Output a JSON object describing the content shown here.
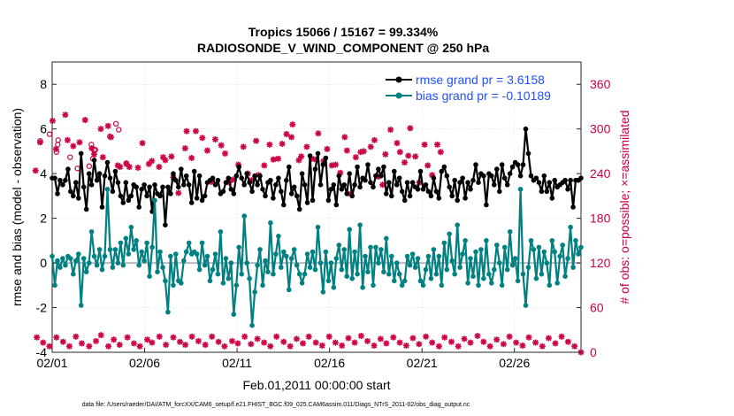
{
  "chart_data": {
    "type": "line",
    "title_line1": "Tropics 15066 / 15167 = 99.334%",
    "title_line2": "RADIOSONDE_V_WIND_COMPONENT @ 250 hPa",
    "xlabel": "Feb.01,2011 00:00:00 start",
    "ylabel": "rmse and bias (model - observation)",
    "ylabel_right": "# of obs: o=possible; ×=assimilated",
    "x_tick_labels": [
      "02/01",
      "02/06",
      "02/11",
      "02/16",
      "02/21",
      "02/26"
    ],
    "x_tick_days": [
      1,
      6,
      11,
      16,
      21,
      26
    ],
    "xlim": [
      1,
      29.6
    ],
    "ylim": [
      -4,
      9
    ],
    "y_ticks": [
      "-4",
      "-2",
      "0",
      "2",
      "4",
      "6",
      "8"
    ],
    "ylim_right": [
      0,
      390
    ],
    "y_ticks_right": [
      "0",
      "60",
      "120",
      "180",
      "240",
      "300",
      "360"
    ],
    "footnote": "data file: /Users/raeder/DAI/ATM_forcXX/CAM6_setup/f.e21.FHIST_BGC.f09_025.CAM6assim.011/Diags_NTrS_2011-02/obs_diag_output.nc",
    "series": [
      {
        "name": "rmse grand pr = 3.6158",
        "color": "#000000",
        "values": [
          3.8,
          3.8,
          3.1,
          3.7,
          3.5,
          3.7,
          4.2,
          3.2,
          3.0,
          3.6,
          2.9,
          4.9,
          3.4,
          2.4,
          4.0,
          3.5,
          4.6,
          3.7,
          4.0,
          2.5,
          3.9,
          4.5,
          3.8,
          3.2,
          4.1,
          3.6,
          3.0,
          2.7,
          3.6,
          2.8,
          3.0,
          3.5,
          3.4,
          2.5,
          3.3,
          3.5,
          3.0,
          3.4,
          2.3,
          3.5,
          3.1,
          3.0,
          3.4,
          1.7,
          3.4,
          3.1,
          4.0,
          3.7,
          3.4,
          4.2,
          3.5,
          3.9,
          3.5,
          2.7,
          4.1,
          2.9,
          3.9,
          2.8,
          3.0,
          3.6,
          3.7,
          3.8,
          3.5,
          3.7,
          3.1,
          3.2,
          3.6,
          3.8,
          3.3,
          3.1,
          3.9,
          4.3,
          3.8,
          3.5,
          4.0,
          3.6,
          3.2,
          3.9,
          3.5,
          3.9,
          3.3,
          3.0,
          3.6,
          3.7,
          2.9,
          3.5,
          3.8,
          3.2,
          2.6,
          3.7,
          4.3,
          3.1,
          3.4,
          3.0,
          2.4,
          4.0,
          3.5,
          2.7,
          4.8,
          2.8,
          4.2,
          4.9,
          3.5,
          4.4,
          4.7,
          2.8,
          3.3,
          3.5,
          2.6,
          3.9,
          3.3,
          3.5,
          3.1,
          4.0,
          3.0,
          3.5,
          4.3,
          3.4,
          3.8,
          3.7,
          4.4,
          3.6,
          3.4,
          3.9,
          4.2,
          3.9,
          4.3,
          3.1,
          3.6,
          3.0,
          4.1,
          3.5,
          3.8,
          3.2,
          2.8,
          3.6,
          3.0,
          3.6,
          3.4,
          3.3,
          4.1,
          3.3,
          3.5,
          3.2,
          3.0,
          3.8,
          3.2,
          2.9,
          4.1,
          4.3,
          3.9,
          3.4,
          3.0,
          3.7,
          2.8,
          3.6,
          3.8,
          2.9,
          3.6,
          3.3,
          3.7,
          4.4,
          3.6,
          4.0,
          3.9,
          2.6,
          4.0,
          3.9,
          3.5,
          4.2,
          3.2,
          4.4,
          3.8,
          3.5,
          4.0,
          4.3,
          4.5,
          4.4,
          3.9,
          4.4,
          6.0,
          4.9,
          3.9,
          3.7,
          3.8,
          3.6,
          3.2,
          3.9,
          3.2,
          3.6,
          2.9,
          3.7,
          3.4,
          3.5,
          3.6,
          3.7,
          3.3,
          3.7,
          2.5,
          3.7,
          3.7,
          3.8
        ]
      },
      {
        "name": "bias grand pr = -0.10189",
        "color": "#008080",
        "values": [
          0.3,
          -1.0,
          0.1,
          -0.2,
          0.2,
          -0.1,
          0.3,
          0.2,
          -0.5,
          0.1,
          0.4,
          -1.9,
          0.2,
          -0.4,
          0.0,
          1.4,
          0.3,
          -0.1,
          0.6,
          -0.3,
          0.3,
          3.3,
          0.6,
          -0.2,
          0.6,
          0.0,
          0.9,
          -0.1,
          1.1,
          0.4,
          1.6,
          0.6,
          1.0,
          -0.1,
          0.5,
          0.1,
          0.9,
          -0.6,
          0.7,
          2.8,
          -0.4,
          0.5,
          -0.2,
          -0.8,
          -2.2,
          0.3,
          -1.0,
          0.4,
          -0.8,
          -0.9,
          0.1,
          0.5,
          0.9,
          0.4,
          0.5,
          0.4,
          -0.3,
          0.9,
          -0.1,
          0.3,
          -0.8,
          -0.3,
          0.4,
          -0.5,
          1.4,
          -0.9,
          0.2,
          -0.7,
          0.0,
          -2.3,
          -1.0,
          0.7,
          -0.5,
          2.1,
          0.0,
          -0.7,
          -2.8,
          -1.3,
          -0.1,
          0.6,
          -1.0,
          0.1,
          -0.4,
          1.8,
          -0.5,
          0.4,
          1.2,
          -0.2,
          0.5,
          0.3,
          -1.2,
          0.2,
          0.6,
          -0.1,
          -0.5,
          -0.9,
          -0.5,
          0.4,
          -0.2,
          0.5,
          -0.3,
          1.6,
          0.0,
          -1.3,
          0.5,
          -0.8,
          0.0,
          -1.1,
          0.2,
          0.8,
          -0.3,
          0.6,
          -0.6,
          1.5,
          -0.7,
          0.5,
          -0.5,
          1.7,
          -1.1,
          0.3,
          -0.4,
          0.7,
          -1.0,
          0.7,
          0.0,
          0.6,
          -0.4,
          1.1,
          -0.5,
          0.3,
          -0.8,
          0.0,
          -0.5,
          -1.0,
          -0.8,
          0.3,
          -0.1,
          0.4,
          -0.2,
          0.2,
          -0.8,
          -1.0,
          -0.3,
          0.3,
          -0.7,
          0.6,
          -0.5,
          0.3,
          -1.0,
          0.9,
          -0.3,
          1.3,
          0.1,
          -0.5,
          1.7,
          -0.2,
          0.4,
          1.0,
          -0.9,
          0.2,
          -0.6,
          0.5,
          -1.0,
          0.6,
          -0.7,
          1.0,
          -0.5,
          -0.9,
          -0.3,
          0.8,
          0.0,
          -1.0,
          0.7,
          -0.3,
          1.4,
          -0.1,
          0.2,
          -0.8,
          3.3,
          -0.5,
          -1.9,
          -0.2,
          1.0,
          0.6,
          -0.7,
          0.7,
          -0.5,
          0.5,
          0.0,
          -1.0,
          1.0,
          0.5,
          -0.9,
          0.3,
          0.8,
          -0.6,
          0.2,
          1.6,
          -0.2,
          1.0,
          0.4,
          0.7
        ]
      }
    ],
    "obs_possible_marks": [
      [
        5,
        0.35,
        284
      ],
      [
        11,
        1.32,
        285
      ],
      [
        13,
        3.2,
        260
      ],
      [
        15,
        5.0,
        254
      ],
      [
        17,
        0.86,
        293
      ],
      [
        28,
        1.3,
        279
      ],
      [
        29,
        1.97,
        262
      ],
      [
        32,
        3.27,
        272
      ],
      [
        35,
        2.37,
        247
      ],
      [
        42,
        4.12,
        290
      ],
      [
        44,
        3.0,
        250
      ],
      [
        58,
        3.33,
        272
      ],
      [
        61,
        4.45,
        307
      ],
      [
        77,
        1.23,
        269
      ],
      [
        83,
        4.6,
        299
      ],
      [
        90,
        3.12,
        279
      ]
    ],
    "obs_assimilated_marks": [
      [
        1,
        0.1,
        244
      ],
      [
        2,
        0.35,
        282
      ],
      [
        3,
        1.02,
        311
      ],
      [
        4,
        1.21,
        273
      ],
      [
        5,
        1.71,
        319
      ],
      [
        6,
        1.83,
        285
      ],
      [
        7,
        2.14,
        277
      ],
      [
        8,
        2.48,
        282
      ],
      [
        9,
        2.78,
        312
      ],
      [
        10,
        3.14,
        274
      ],
      [
        11,
        3.27,
        266
      ],
      [
        12,
        3.63,
        300
      ],
      [
        13,
        3.74,
        262
      ],
      [
        14,
        4.02,
        304
      ],
      [
        15,
        4.18,
        289
      ],
      [
        16,
        4.55,
        251
      ],
      [
        17,
        4.67,
        249
      ],
      [
        18,
        5.02,
        253
      ],
      [
        19,
        5.17,
        249
      ],
      [
        20,
        5.64,
        248
      ],
      [
        21,
        5.88,
        281
      ],
      [
        22,
        6.23,
        253
      ],
      [
        23,
        6.39,
        257
      ],
      [
        24,
        6.78,
        249
      ],
      [
        25,
        7.0,
        262
      ],
      [
        26,
        7.12,
        258
      ],
      [
        27,
        7.45,
        263
      ],
      [
        28,
        7.55,
        235
      ],
      [
        29,
        7.83,
        214
      ],
      [
        30,
        8.19,
        274
      ],
      [
        31,
        8.27,
        297
      ],
      [
        32,
        8.54,
        261
      ],
      [
        33,
        8.77,
        297
      ],
      [
        34,
        9.12,
        288
      ],
      [
        35,
        9.39,
        271
      ],
      [
        36,
        9.6,
        229
      ],
      [
        37,
        9.82,
        286
      ],
      [
        38,
        10.14,
        278
      ],
      [
        39,
        10.35,
        267
      ],
      [
        40,
        10.57,
        228
      ],
      [
        41,
        10.78,
        232
      ],
      [
        42,
        11.07,
        252
      ],
      [
        43,
        11.34,
        276
      ],
      [
        44,
        11.58,
        240
      ],
      [
        45,
        11.8,
        231
      ],
      [
        46,
        12.03,
        284
      ],
      [
        47,
        12.16,
        238
      ],
      [
        48,
        12.47,
        251
      ],
      [
        49,
        12.76,
        279
      ],
      [
        50,
        12.96,
        259
      ],
      [
        51,
        13.22,
        260
      ],
      [
        52,
        13.44,
        280
      ],
      [
        53,
        13.67,
        293
      ],
      [
        54,
        13.94,
        289
      ],
      [
        55,
        14.0,
        306
      ],
      [
        56,
        14.34,
        258
      ],
      [
        57,
        14.47,
        263
      ],
      [
        58,
        14.77,
        276
      ],
      [
        59,
        15.04,
        260
      ],
      [
        60,
        15.27,
        259
      ],
      [
        61,
        15.39,
        294
      ],
      [
        62,
        15.68,
        257
      ],
      [
        63,
        15.87,
        273
      ],
      [
        64,
        16.13,
        251
      ],
      [
        65,
        16.33,
        252
      ],
      [
        66,
        16.58,
        241
      ],
      [
        67,
        16.82,
        289
      ],
      [
        68,
        16.94,
        271
      ],
      [
        69,
        17.15,
        213
      ],
      [
        70,
        17.42,
        262
      ],
      [
        71,
        17.68,
        269
      ],
      [
        72,
        17.85,
        270
      ],
      [
        73,
        18.23,
        276
      ],
      [
        74,
        18.43,
        285
      ],
      [
        75,
        18.64,
        236
      ],
      [
        76,
        18.87,
        225
      ],
      [
        77,
        19.02,
        266
      ],
      [
        78,
        19.3,
        299
      ],
      [
        79,
        19.65,
        281
      ],
      [
        80,
        19.81,
        269
      ],
      [
        81,
        20.06,
        255
      ],
      [
        82,
        20.26,
        264
      ],
      [
        83,
        20.36,
        301
      ],
      [
        84,
        20.64,
        263
      ],
      [
        85,
        20.85,
        228
      ],
      [
        86,
        21.14,
        279
      ],
      [
        87,
        21.31,
        251
      ],
      [
        88,
        21.55,
        238
      ],
      [
        89,
        21.83,
        279
      ],
      [
        90,
        22.01,
        269
      ]
    ],
    "obs_assimilated_bottom_marks": [
      [
        1,
        0.17,
        20
      ],
      [
        2,
        0.51,
        13
      ],
      [
        3,
        0.85,
        8
      ],
      [
        4,
        1.23,
        20
      ],
      [
        5,
        1.59,
        14
      ],
      [
        6,
        1.93,
        8
      ],
      [
        7,
        2.28,
        21
      ],
      [
        8,
        2.6,
        12
      ],
      [
        9,
        3.0,
        8
      ],
      [
        10,
        3.37,
        15
      ],
      [
        11,
        3.64,
        23
      ],
      [
        12,
        4.04,
        8
      ],
      [
        13,
        4.33,
        17
      ],
      [
        14,
        4.65,
        10
      ],
      [
        15,
        5.07,
        20
      ],
      [
        16,
        5.42,
        12
      ],
      [
        17,
        5.74,
        8
      ],
      [
        18,
        6.14,
        17
      ],
      [
        19,
        6.4,
        13
      ],
      [
        20,
        6.8,
        21
      ],
      [
        21,
        7.15,
        10
      ],
      [
        22,
        7.55,
        20
      ],
      [
        23,
        7.91,
        14
      ],
      [
        24,
        8.2,
        10
      ],
      [
        25,
        8.56,
        21
      ],
      [
        26,
        8.91,
        15
      ],
      [
        27,
        9.28,
        10
      ],
      [
        28,
        9.64,
        21
      ],
      [
        29,
        10.0,
        14
      ],
      [
        30,
        10.32,
        8
      ],
      [
        31,
        10.73,
        15
      ],
      [
        32,
        11.04,
        12
      ],
      [
        33,
        11.41,
        21
      ],
      [
        34,
        11.75,
        11
      ],
      [
        35,
        12.1,
        18
      ],
      [
        36,
        12.46,
        13
      ],
      [
        37,
        12.8,
        8
      ],
      [
        38,
        13.13,
        21
      ],
      [
        39,
        13.52,
        14
      ],
      [
        40,
        13.87,
        8
      ],
      [
        41,
        14.22,
        18
      ],
      [
        42,
        14.56,
        12
      ],
      [
        43,
        14.88,
        21
      ],
      [
        44,
        15.26,
        13
      ],
      [
        45,
        15.6,
        9
      ],
      [
        46,
        15.98,
        21
      ],
      [
        47,
        16.32,
        13
      ],
      [
        48,
        16.67,
        9
      ],
      [
        49,
        17.02,
        19
      ],
      [
        50,
        17.36,
        13
      ],
      [
        51,
        17.71,
        22
      ],
      [
        52,
        18.05,
        15
      ],
      [
        53,
        18.41,
        9
      ],
      [
        54,
        18.76,
        18
      ],
      [
        55,
        19.07,
        12
      ],
      [
        56,
        19.45,
        20
      ],
      [
        57,
        19.8,
        13
      ],
      [
        58,
        20.15,
        9
      ],
      [
        59,
        20.51,
        19
      ],
      [
        60,
        20.84,
        11
      ],
      [
        61,
        21.21,
        21
      ],
      [
        62,
        21.55,
        13
      ],
      [
        63,
        21.92,
        8
      ],
      [
        64,
        22.22,
        20
      ],
      [
        65,
        22.59,
        14
      ],
      [
        66,
        22.96,
        8
      ],
      [
        67,
        23.29,
        18
      ],
      [
        68,
        23.62,
        13
      ],
      [
        69,
        24.0,
        22
      ],
      [
        70,
        24.33,
        14
      ],
      [
        71,
        24.68,
        8
      ],
      [
        72,
        25.04,
        17
      ],
      [
        73,
        25.41,
        11
      ],
      [
        74,
        25.73,
        21
      ],
      [
        75,
        26.09,
        13
      ],
      [
        76,
        26.44,
        9
      ],
      [
        77,
        26.78,
        20
      ],
      [
        78,
        27.14,
        13
      ],
      [
        79,
        27.51,
        8
      ],
      [
        80,
        27.85,
        19
      ],
      [
        81,
        28.21,
        12
      ],
      [
        82,
        28.55,
        21
      ],
      [
        83,
        28.9,
        14
      ],
      [
        84,
        29.25,
        8
      ],
      [
        85,
        29.6,
        0
      ]
    ]
  }
}
